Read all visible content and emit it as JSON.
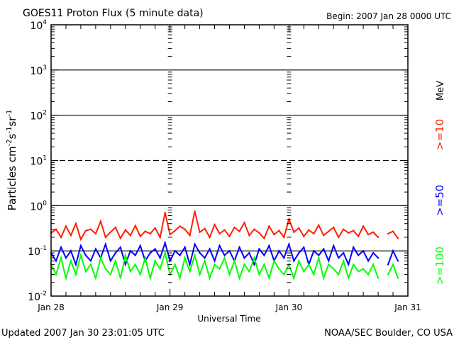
{
  "chart_data": {
    "type": "line",
    "title": "GOES11 Proton Flux (5 minute data)",
    "begin_label": "Begin: 2007 Jan 28 0000 UTC",
    "xlabel": "Universal Time",
    "ylabel": {
      "base": "Particles cm",
      "e1": "-2",
      "s": "s",
      "e2": "-1",
      "sr": "sr",
      "e3": "-1"
    },
    "x_unit": "hours since 2007 Jan 28 0000 UTC",
    "xlim": [
      0,
      72
    ],
    "x_ticks": [
      {
        "value": 0,
        "label": "Jan 28"
      },
      {
        "value": 24,
        "label": "Jan 29"
      },
      {
        "value": 48,
        "label": "Jan 30"
      },
      {
        "value": 72,
        "label": "Jan 31"
      }
    ],
    "yscale": "log",
    "ylim": [
      0.01,
      10000
    ],
    "y_ticks": [
      {
        "exp": "4",
        "value": 10000
      },
      {
        "exp": "3",
        "value": 1000
      },
      {
        "exp": "2",
        "value": 100
      },
      {
        "exp": "1",
        "value": 10
      },
      {
        "exp": "0",
        "value": 1
      },
      {
        "exp": "-1",
        "value": 0.1
      },
      {
        "exp": "-2",
        "value": 0.01
      }
    ],
    "y_tick_base": "10",
    "unit_label": "MeV",
    "series": [
      {
        "name": ">=10",
        "color": "#ff2000",
        "values": [
          0.25,
          0.3,
          0.2,
          0.35,
          0.22,
          0.4,
          0.18,
          0.28,
          0.3,
          0.24,
          0.45,
          0.2,
          0.26,
          0.33,
          0.19,
          0.29,
          0.22,
          0.36,
          0.21,
          0.27,
          0.24,
          0.32,
          0.2,
          0.7,
          0.23,
          0.28,
          0.35,
          0.3,
          0.22,
          0.75,
          0.26,
          0.31,
          0.2,
          0.38,
          0.24,
          0.29,
          0.21,
          0.33,
          0.27,
          0.42,
          0.22,
          0.3,
          0.25,
          0.19,
          0.35,
          0.23,
          0.28,
          0.2,
          0.5,
          0.26,
          0.32,
          0.21,
          0.29,
          0.24,
          0.37,
          0.22,
          0.27,
          0.33,
          0.2,
          0.3,
          0.25,
          0.28,
          0.21,
          0.35,
          0.23,
          0.26,
          0.2,
          null,
          0.24,
          0.27,
          0.19
        ]
      },
      {
        "name": ">=50",
        "color": "#0000ff",
        "values": [
          0.09,
          0.06,
          0.12,
          0.07,
          0.1,
          0.05,
          0.13,
          0.08,
          0.06,
          0.11,
          0.07,
          0.14,
          0.06,
          0.09,
          0.12,
          0.05,
          0.1,
          0.08,
          0.13,
          0.06,
          0.09,
          0.11,
          0.07,
          0.15,
          0.06,
          0.1,
          0.08,
          0.12,
          0.05,
          0.14,
          0.09,
          0.07,
          0.11,
          0.06,
          0.13,
          0.08,
          0.1,
          0.06,
          0.12,
          0.07,
          0.09,
          0.05,
          0.11,
          0.08,
          0.13,
          0.06,
          0.1,
          0.07,
          0.14,
          0.06,
          0.09,
          0.12,
          0.05,
          0.1,
          0.08,
          0.11,
          0.06,
          0.13,
          0.07,
          0.09,
          0.05,
          0.12,
          0.08,
          0.1,
          0.06,
          0.09,
          0.07,
          null,
          0.05,
          0.1,
          0.06
        ]
      },
      {
        "name": ">=100",
        "color": "#00ff00",
        "values": [
          0.05,
          0.03,
          0.07,
          0.025,
          0.06,
          0.03,
          0.08,
          0.035,
          0.05,
          0.025,
          0.07,
          0.04,
          0.03,
          0.06,
          0.025,
          0.08,
          0.035,
          0.05,
          0.03,
          0.07,
          0.025,
          0.06,
          0.04,
          0.09,
          0.03,
          0.05,
          0.025,
          0.07,
          0.035,
          0.08,
          0.03,
          0.06,
          0.025,
          0.05,
          0.04,
          0.07,
          0.03,
          0.06,
          0.025,
          0.05,
          0.035,
          0.07,
          0.03,
          0.05,
          0.025,
          0.06,
          0.04,
          0.03,
          0.05,
          0.025,
          0.06,
          0.035,
          0.05,
          0.03,
          0.07,
          0.025,
          0.05,
          0.04,
          0.03,
          0.06,
          0.025,
          0.05,
          0.035,
          0.04,
          0.03,
          0.05,
          0.025,
          null,
          0.03,
          0.05,
          0.025
        ]
      }
    ],
    "grid": "horizontal lines at decades (10^1 dashed)"
  },
  "footer": {
    "updated": "Updated 2007 Jan 30 23:01:05 UTC",
    "source": "NOAA/SEC Boulder, CO USA"
  }
}
